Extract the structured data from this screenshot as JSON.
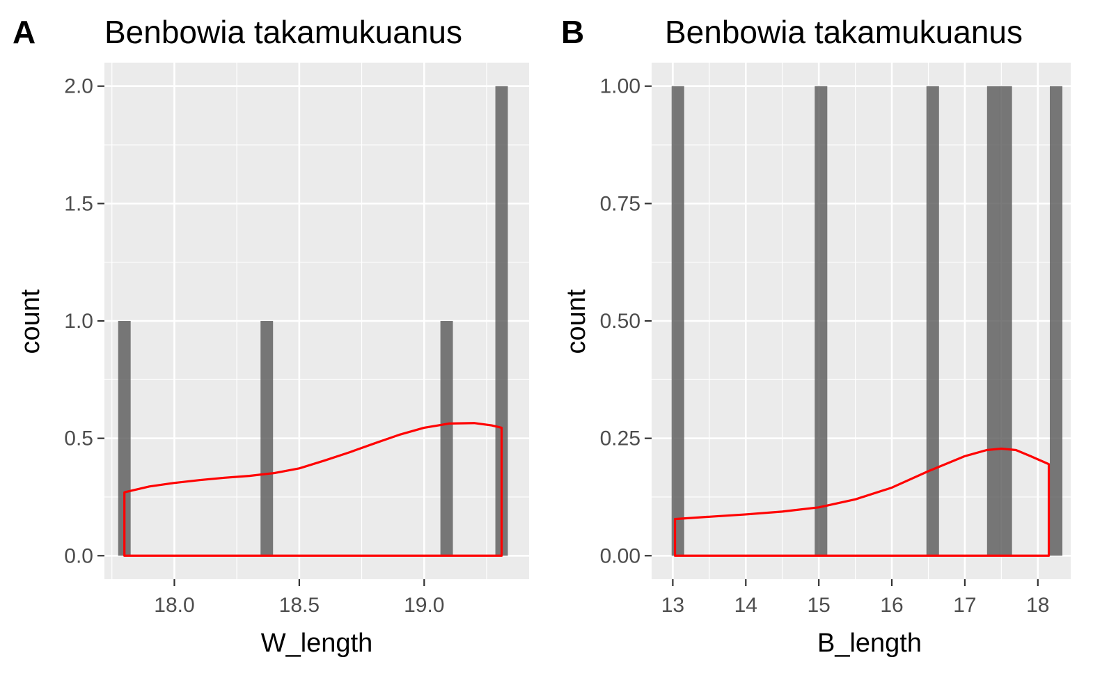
{
  "colors": {
    "panel_background": "#ebebeb",
    "grid": "#ffffff",
    "bar": "#595959",
    "density": "#ff0000",
    "tick_text": "#4d4d4d"
  },
  "chart_data": [
    {
      "panel_tag": "A",
      "type": "bar",
      "title": "Benbowia takamukuanus",
      "xlabel": "W_length",
      "ylabel": "count",
      "xlim": [
        17.72,
        19.42
      ],
      "ylim": [
        -0.1,
        2.1
      ],
      "x_ticks": [
        {
          "value": 18.0,
          "label": "18.0"
        },
        {
          "value": 18.5,
          "label": "18.5"
        },
        {
          "value": 19.0,
          "label": "19.0"
        }
      ],
      "y_ticks": [
        {
          "value": 0.0,
          "label": "0.0"
        },
        {
          "value": 0.5,
          "label": "0.5"
        },
        {
          "value": 1.0,
          "label": "1.0"
        },
        {
          "value": 1.5,
          "label": "1.5"
        },
        {
          "value": 2.0,
          "label": "2.0"
        }
      ],
      "bin_width": 0.05,
      "bars": [
        {
          "x": 17.8,
          "count": 1
        },
        {
          "x": 18.37,
          "count": 1
        },
        {
          "x": 19.09,
          "count": 1
        },
        {
          "x": 19.31,
          "count": 2
        }
      ],
      "density": [
        [
          17.8,
          0.27
        ],
        [
          17.9,
          0.295
        ],
        [
          18.0,
          0.31
        ],
        [
          18.1,
          0.322
        ],
        [
          18.2,
          0.332
        ],
        [
          18.3,
          0.34
        ],
        [
          18.4,
          0.352
        ],
        [
          18.5,
          0.372
        ],
        [
          18.6,
          0.405
        ],
        [
          18.7,
          0.44
        ],
        [
          18.8,
          0.478
        ],
        [
          18.9,
          0.515
        ],
        [
          19.0,
          0.545
        ],
        [
          19.1,
          0.563
        ],
        [
          19.2,
          0.565
        ],
        [
          19.27,
          0.555
        ],
        [
          19.31,
          0.545
        ]
      ],
      "grid": true
    },
    {
      "panel_tag": "B",
      "type": "bar",
      "title": "Benbowia takamukuanus",
      "xlabel": "B_length",
      "ylabel": "count",
      "xlim": [
        12.71,
        18.45
      ],
      "ylim": [
        -0.05,
        1.05
      ],
      "x_ticks": [
        {
          "value": 13,
          "label": "13"
        },
        {
          "value": 14,
          "label": "14"
        },
        {
          "value": 15,
          "label": "15"
        },
        {
          "value": 16,
          "label": "16"
        },
        {
          "value": 17,
          "label": "17"
        },
        {
          "value": 18,
          "label": "18"
        }
      ],
      "y_ticks": [
        {
          "value": 0.0,
          "label": "0.00"
        },
        {
          "value": 0.25,
          "label": "0.25"
        },
        {
          "value": 0.5,
          "label": "0.50"
        },
        {
          "value": 0.75,
          "label": "0.75"
        },
        {
          "value": 1.0,
          "label": "1.00"
        }
      ],
      "bin_width": 0.172,
      "bars": [
        {
          "x": 13.07,
          "count": 1
        },
        {
          "x": 15.03,
          "count": 1
        },
        {
          "x": 16.56,
          "count": 1
        },
        {
          "x": 17.39,
          "count": 1
        },
        {
          "x": 17.56,
          "count": 1
        },
        {
          "x": 18.25,
          "count": 1
        }
      ],
      "density": [
        [
          13.03,
          0.078
        ],
        [
          13.5,
          0.083
        ],
        [
          14.0,
          0.088
        ],
        [
          14.5,
          0.094
        ],
        [
          15.0,
          0.103
        ],
        [
          15.5,
          0.12
        ],
        [
          16.0,
          0.145
        ],
        [
          16.5,
          0.18
        ],
        [
          17.0,
          0.212
        ],
        [
          17.3,
          0.225
        ],
        [
          17.5,
          0.228
        ],
        [
          17.7,
          0.225
        ],
        [
          17.9,
          0.212
        ],
        [
          18.15,
          0.195
        ]
      ],
      "grid": true
    }
  ]
}
